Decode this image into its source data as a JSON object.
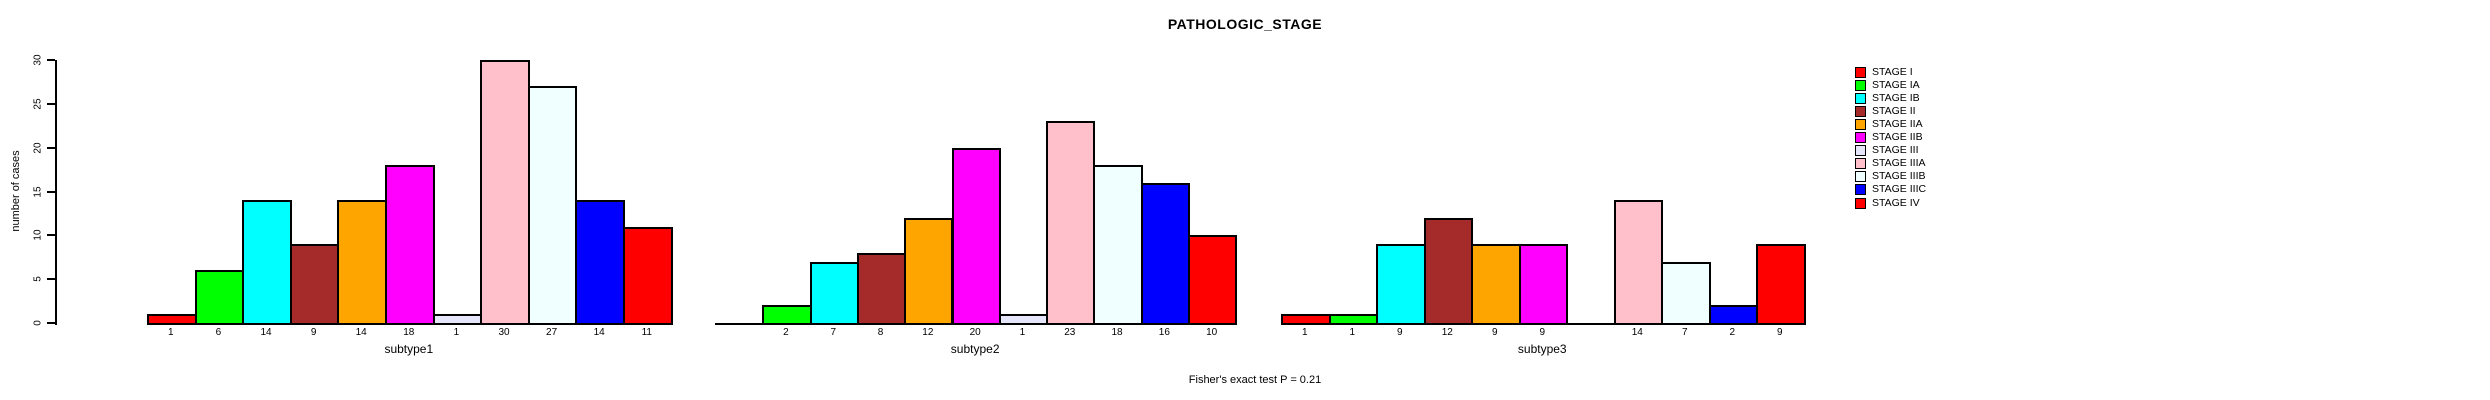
{
  "chart_data": {
    "type": "bar",
    "title": "PATHOLOGIC_STAGE",
    "ylabel": "number of cases",
    "ylim": [
      0,
      30
    ],
    "yticks": [
      0,
      5,
      10,
      15,
      20,
      25,
      30
    ],
    "grid": false,
    "legend_position": "right",
    "bar_value_labels_shown": true,
    "categories": [
      "STAGE I",
      "STAGE IA",
      "STAGE IB",
      "STAGE II",
      "STAGE IIA",
      "STAGE IIB",
      "STAGE III",
      "STAGE IIIA",
      "STAGE IIIB",
      "STAGE IIIC",
      "STAGE IV"
    ],
    "colors": [
      "#FF0000",
      "#00FF00",
      "#00FFFF",
      "#A52A2A",
      "#FFA500",
      "#FF00FF",
      "#E6E6FA",
      "#FFC0CB",
      "#F0FFFF",
      "#0000FF",
      "#FF0000"
    ],
    "groups": [
      {
        "label": "subtype1",
        "values": [
          1,
          6,
          14,
          9,
          14,
          18,
          1,
          30,
          27,
          14,
          11
        ]
      },
      {
        "label": "subtype2",
        "values": [
          0,
          2,
          7,
          8,
          12,
          20,
          1,
          23,
          18,
          16,
          10
        ]
      },
      {
        "label": "subtype3",
        "values": [
          1,
          1,
          9,
          12,
          9,
          9,
          0,
          14,
          7,
          2,
          9
        ]
      }
    ],
    "annotation": "Fisher's exact test P = 0.21"
  }
}
